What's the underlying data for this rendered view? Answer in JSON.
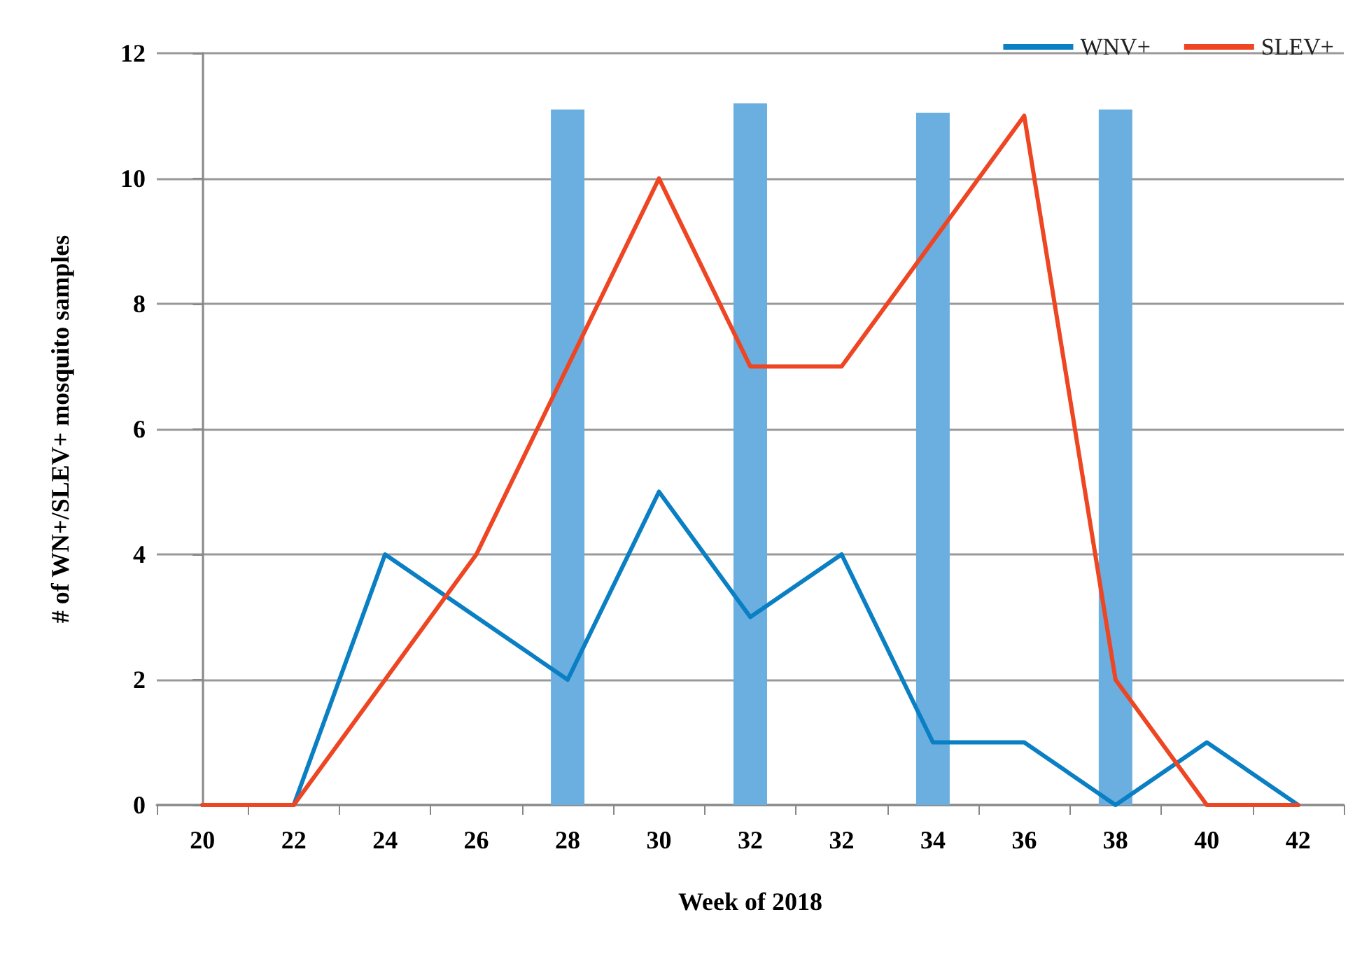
{
  "chart_data": {
    "type": "line",
    "xlabel": "Week of 2018",
    "ylabel": "# of WN+/SLEV+ mosquito samples",
    "categories": [
      "20",
      "22",
      "24",
      "26",
      "28",
      "30",
      "32",
      "32",
      "34",
      "36",
      "38",
      "40",
      "42"
    ],
    "series": [
      {
        "name": "WNV+",
        "color": "#0a7fc4",
        "values": [
          0,
          0,
          4,
          3,
          2,
          5,
          3,
          4,
          1,
          1,
          0,
          1,
          0
        ]
      },
      {
        "name": "SLEV+",
        "color": "#ee4523",
        "values": [
          0,
          0,
          2,
          4,
          7,
          10,
          7,
          7,
          9,
          11,
          2,
          0,
          0
        ]
      },
      {
        "type": "bar",
        "color": "#6aafe0",
        "values": [
          null,
          null,
          null,
          null,
          11.1,
          null,
          11.2,
          null,
          11.05,
          null,
          11.1,
          null,
          null
        ]
      }
    ],
    "ylim": [
      0,
      12
    ],
    "yticks": [
      0,
      2,
      4,
      6,
      8,
      10,
      12
    ],
    "grid": "y",
    "legend": "top right",
    "marker": "none",
    "line_style": "solid"
  }
}
